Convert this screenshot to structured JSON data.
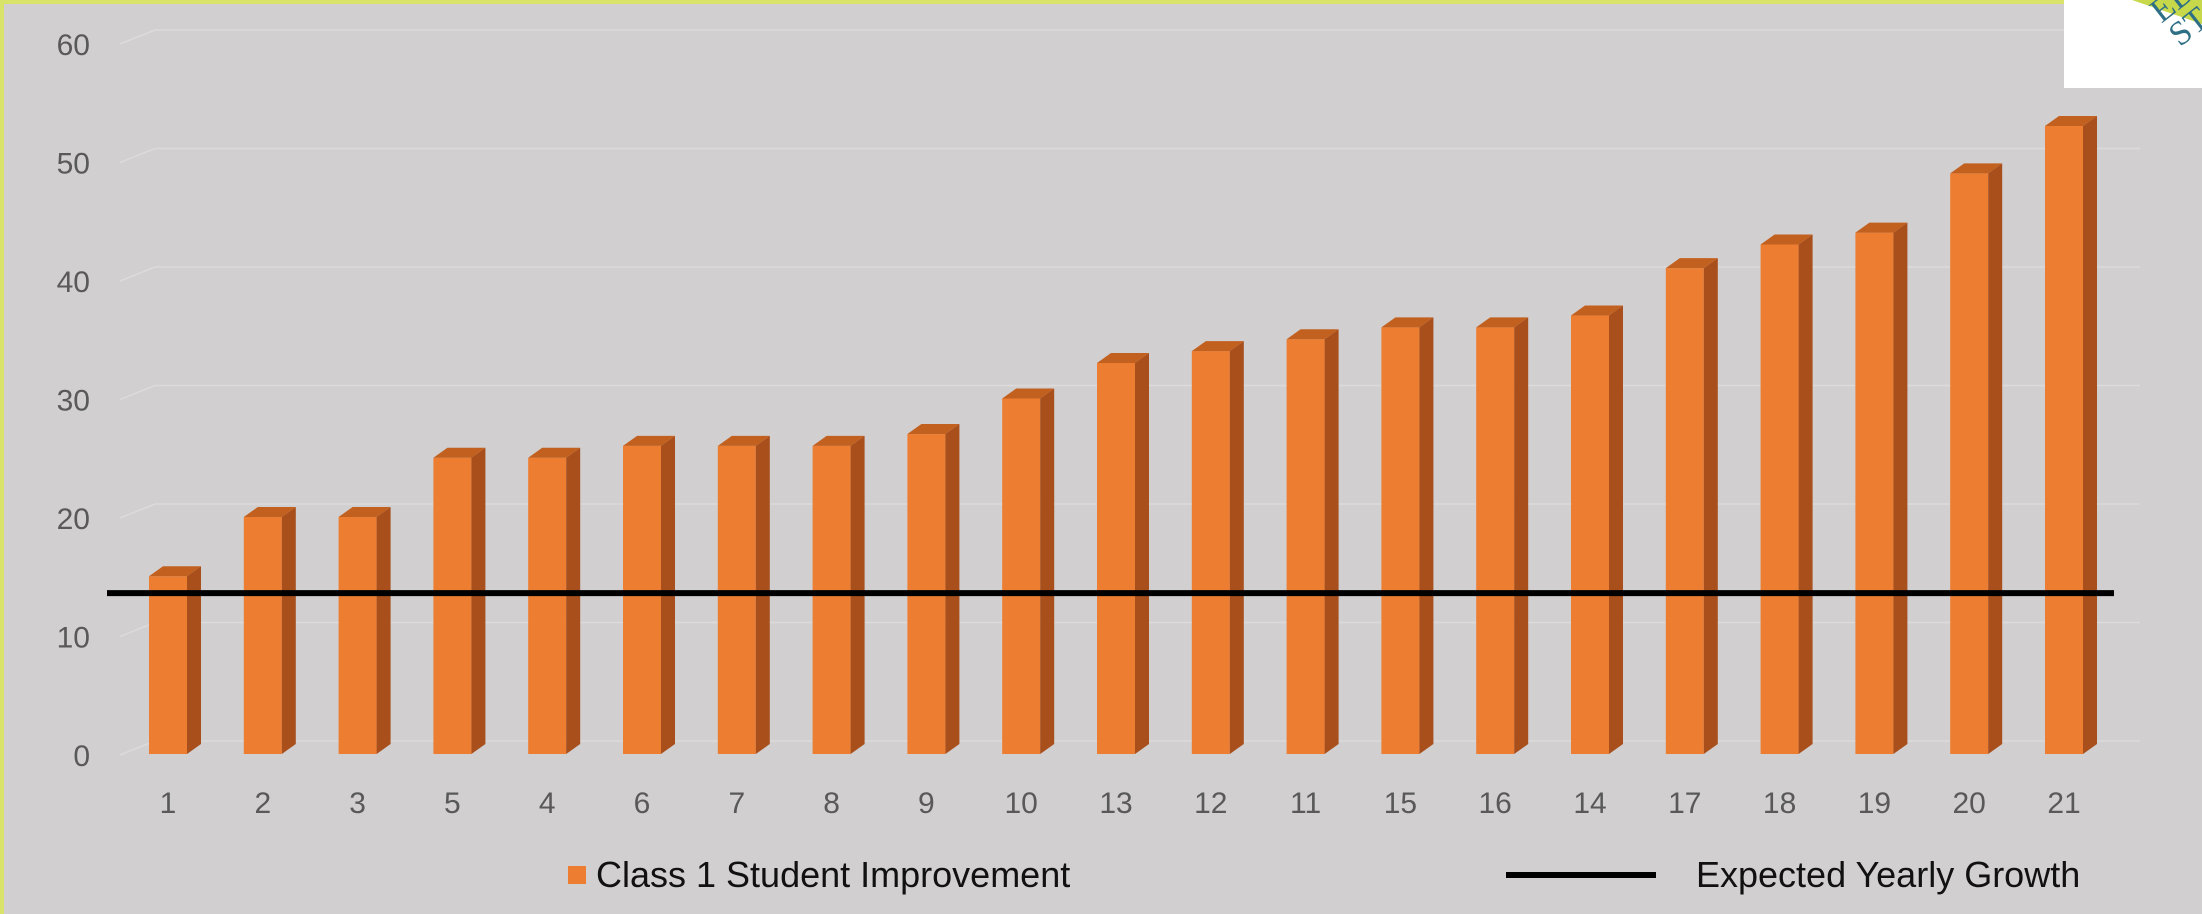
{
  "chart_data": {
    "type": "bar",
    "categories": [
      "1",
      "2",
      "3",
      "5",
      "4",
      "6",
      "7",
      "8",
      "9",
      "10",
      "13",
      "12",
      "11",
      "15",
      "16",
      "14",
      "17",
      "18",
      "19",
      "20",
      "21"
    ],
    "series": [
      {
        "name": "Class 1 Student Improvement",
        "values": [
          15,
          20,
          20,
          25,
          25,
          26,
          26,
          26,
          27,
          30,
          33,
          34,
          35,
          36,
          36,
          37,
          41,
          43,
          44,
          49,
          53
        ],
        "color": "#ed7d31"
      }
    ],
    "reference_line": {
      "name": "Expected Yearly Growth",
      "value": 14,
      "color": "#000000"
    },
    "ylim": [
      0,
      60
    ],
    "yticks": [
      0,
      10,
      20,
      30,
      40,
      50,
      60
    ],
    "grid": true,
    "legend": "bottom",
    "title": "",
    "xlabel": "",
    "ylabel": ""
  },
  "legend": {
    "bar_label": "Class 1 Student Improvement",
    "line_label": "Expected Yearly Growth"
  },
  "logo": {
    "text": "ED ST",
    "icon": "logo-badge"
  }
}
